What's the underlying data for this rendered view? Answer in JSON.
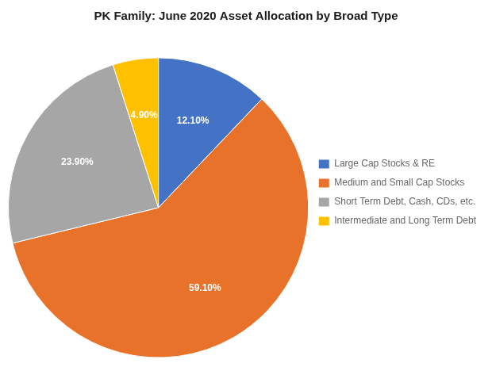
{
  "chart_data": {
    "type": "pie",
    "title": "PK Family: June 2020 Asset Allocation by Broad Type",
    "categories": [
      "Large Cap Stocks & RE",
      "Medium and Small Cap Stocks",
      "Short Term Debt, Cash, CDs, etc.",
      "Intermediate and Long Term Debt"
    ],
    "values": [
      12.1,
      59.1,
      23.9,
      4.9
    ],
    "value_labels": [
      "12.10%",
      "59.10%",
      "23.90%",
      "4.90%"
    ],
    "colors": [
      "#4472C4",
      "#E8722A",
      "#A6A6A6",
      "#FFC000"
    ],
    "data_labels": true,
    "legend": "right"
  }
}
